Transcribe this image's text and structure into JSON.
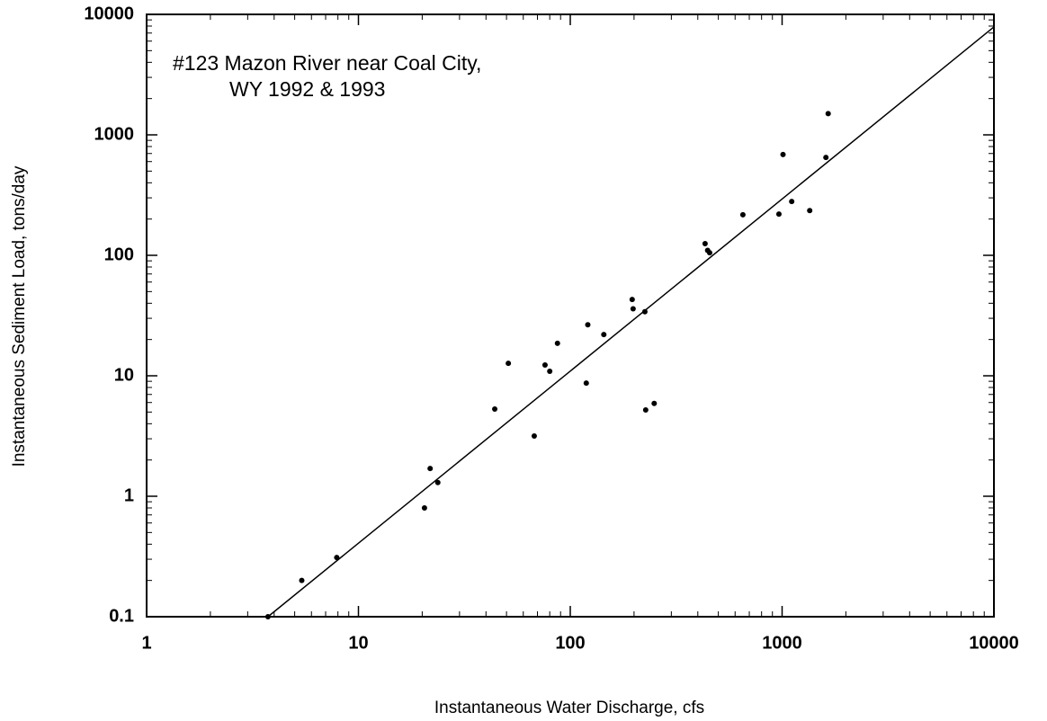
{
  "chart_data": {
    "type": "scatter",
    "title_lines": [
      "#123 Mazon River near Coal City,",
      "WY 1992 & 1993"
    ],
    "xlabel": "Instantaneous Water Discharge, cfs",
    "ylabel": "Instantaneous Sediment Load, tons/day",
    "xscale": "log",
    "yscale": "log",
    "xlim": [
      1,
      10000
    ],
    "ylim": [
      0.1,
      10000
    ],
    "xticks": [
      1,
      10,
      100,
      1000,
      10000
    ],
    "yticks": [
      0.1,
      1,
      10,
      100,
      1000,
      10000
    ],
    "minor_ticks": true,
    "series": [
      {
        "type": "scatter",
        "color": "#000000",
        "x": [
          3.74,
          5.4,
          7.9,
          20.5,
          21.8,
          23.7,
          44,
          51,
          67.6,
          76,
          80,
          87,
          119,
          121,
          144,
          196,
          198,
          225,
          227,
          249,
          433,
          445,
          455,
          653,
          966,
          1010,
          1110,
          1350,
          1610,
          1650
        ],
        "y": [
          0.1,
          0.2,
          0.31,
          0.8,
          1.7,
          1.3,
          5.3,
          12.7,
          3.16,
          12.3,
          10.9,
          18.6,
          8.7,
          26.5,
          22,
          43,
          36,
          34,
          5.2,
          5.9,
          125,
          110,
          105,
          217,
          220,
          686,
          280,
          235,
          650,
          1500
        ]
      },
      {
        "type": "line",
        "color": "#000000",
        "x": [
          3.74,
          10000
        ],
        "y": [
          0.1,
          7870
        ]
      }
    ]
  }
}
